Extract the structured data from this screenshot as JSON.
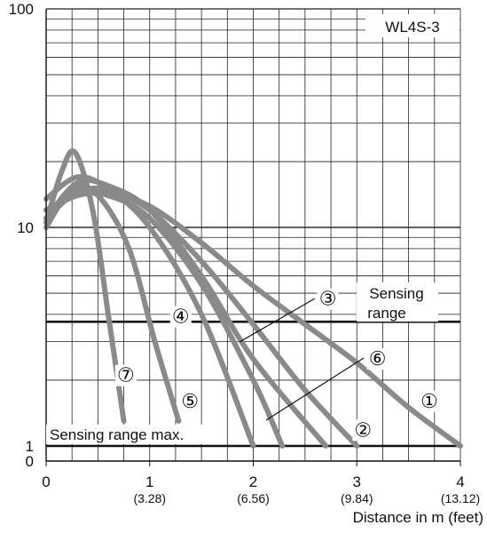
{
  "chart_data": {
    "type": "line",
    "title": "WL4S-3",
    "xlabel": "Distance in m (feet)",
    "ylabel": "",
    "y_scale": "log",
    "xlim": [
      0,
      4
    ],
    "ylim": [
      1,
      100
    ],
    "x_ticks": [
      {
        "value": 0,
        "label": "0",
        "sub": ""
      },
      {
        "value": 1,
        "label": "1",
        "sub": "(3.28)"
      },
      {
        "value": 2,
        "label": "2",
        "sub": "(6.56)"
      },
      {
        "value": 3,
        "label": "3",
        "sub": "(9.84)"
      },
      {
        "value": 4,
        "label": "4",
        "sub": "(13.12)"
      }
    ],
    "y_ticks": [
      {
        "value": 1,
        "label": "1"
      },
      {
        "value": 10,
        "label": "10"
      },
      {
        "value": 100,
        "label": "100"
      }
    ],
    "y_zero_label": "0",
    "grid": true,
    "series_color": "#8a8a8a",
    "reference_color": "#111111",
    "series": [
      {
        "name": "1",
        "x": [
          0.0,
          0.3,
          0.6,
          1.0,
          1.5,
          2.0,
          2.5,
          3.0,
          3.5,
          4.0
        ],
        "y": [
          12.0,
          14.0,
          14.5,
          12.5,
          8.5,
          5.4,
          3.6,
          2.4,
          1.5,
          1.0
        ]
      },
      {
        "name": "2",
        "x": [
          0.0,
          0.3,
          0.6,
          1.0,
          1.5,
          2.0,
          2.5,
          3.0
        ],
        "y": [
          11.0,
          14.5,
          14.8,
          12.0,
          7.0,
          3.6,
          1.8,
          1.0
        ]
      },
      {
        "name": "3",
        "x": [
          0.0,
          0.3,
          0.6,
          1.0,
          1.5,
          2.0,
          2.28
        ],
        "y": [
          12.0,
          14.0,
          14.0,
          11.0,
          5.5,
          2.0,
          1.0
        ]
      },
      {
        "name": "4",
        "x": [
          0.0,
          0.3,
          0.6,
          1.0,
          1.5,
          2.0
        ],
        "y": [
          13.5,
          17.0,
          15.0,
          10.0,
          4.0,
          1.0
        ]
      },
      {
        "name": "5",
        "x": [
          0.0,
          0.25,
          0.5,
          0.8,
          1.05,
          1.28
        ],
        "y": [
          10.0,
          15.0,
          14.0,
          8.0,
          3.0,
          1.3
        ]
      },
      {
        "name": "6",
        "x": [
          0.0,
          0.3,
          0.6,
          1.0,
          1.5,
          2.0,
          2.7
        ],
        "y": [
          11.0,
          16.0,
          15.5,
          12.0,
          6.0,
          2.5,
          1.0
        ]
      },
      {
        "name": "7",
        "x": [
          0.0,
          0.15,
          0.28,
          0.45,
          0.6,
          0.75
        ],
        "y": [
          10.5,
          18.0,
          22.0,
          12.0,
          4.0,
          1.3
        ]
      }
    ],
    "reference_lines": [
      {
        "name": "Sensing range",
        "y": 3.7
      },
      {
        "name": "Sensing range max.",
        "y": 1.0
      }
    ],
    "annotations": [
      {
        "text": "Sensing",
        "line2": "range"
      },
      {
        "text": "Sensing range max."
      }
    ],
    "markers": [
      {
        "label": "①",
        "x": 3.7,
        "y": 1.6
      },
      {
        "label": "②",
        "x": 3.06,
        "y": 1.18
      },
      {
        "label": "③",
        "x": 2.72,
        "y": 4.7
      },
      {
        "label": "④",
        "x": 1.3,
        "y": 3.9
      },
      {
        "label": "⑤",
        "x": 1.39,
        "y": 1.6
      },
      {
        "label": "⑥",
        "x": 3.2,
        "y": 2.5
      },
      {
        "label": "⑦",
        "x": 0.77,
        "y": 2.1
      }
    ]
  }
}
